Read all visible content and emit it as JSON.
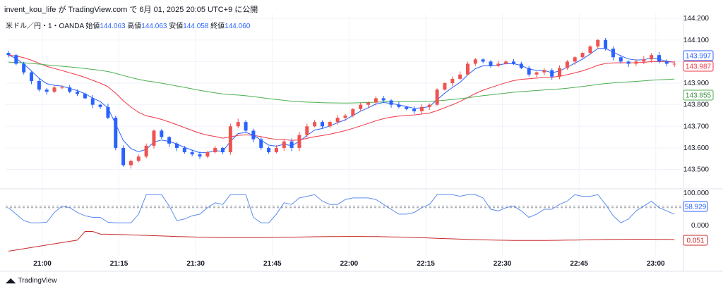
{
  "header": {
    "user": "invent_kou_life",
    "by": "が",
    "site": "TradingView.com",
    "at": "で",
    "date": "6月 01, 2025 20:05 UTC+9",
    "published": "に公開"
  },
  "symbol": {
    "name": "米ドル／円・1・OANDA",
    "open_label": "始値",
    "open": "144.063",
    "high_label": "高値",
    "high": "144.063",
    "low_label": "安値",
    "low": "144.058",
    "close_label": "終値",
    "close": "144.060"
  },
  "footer": {
    "brand": "TradingView"
  },
  "colors": {
    "up": "#ef5350",
    "down": "#2962ff",
    "ma_fast": "#2962ff",
    "ma_mid": "#f23645",
    "ma_slow": "#4caf50",
    "osc": "#5b8def",
    "osc2": "#c62828"
  },
  "chart_data": {
    "type": "candlestick",
    "title": "米ドル／円・1・OANDA",
    "price_ticks": [
      "144.200",
      "144.100",
      "144.000",
      "143.900",
      "143.800",
      "143.700",
      "143.600",
      "143.500"
    ],
    "price_labels": {
      "ma_fast_last": "143.997",
      "last_price": "143.987",
      "ma_slow_last": "143.855"
    },
    "time_labels": [
      "21:00",
      "21:15",
      "21:30",
      "21:45",
      "22:00",
      "22:15",
      "22:30",
      "22:45",
      "23:00"
    ],
    "ylim": [
      143.43,
      144.22
    ],
    "oscillator": {
      "ticks": [
        "100.000",
        "0.000"
      ],
      "value1": "58.929",
      "value2": "0.051",
      "ylim": [
        0,
        100
      ]
    },
    "close_path": [
      144.03,
      143.99,
      143.95,
      143.91,
      143.87,
      143.86,
      143.88,
      143.88,
      143.86,
      143.85,
      143.83,
      143.8,
      143.79,
      143.74,
      143.6,
      143.52,
      143.54,
      143.56,
      143.61,
      143.68,
      143.65,
      143.62,
      143.6,
      143.58,
      143.57,
      143.56,
      143.58,
      143.6,
      143.58,
      143.7,
      143.72,
      143.68,
      143.64,
      143.6,
      143.58,
      143.6,
      143.63,
      143.6,
      143.66,
      143.7,
      143.72,
      143.7,
      143.72,
      143.74,
      143.75,
      143.78,
      143.8,
      143.81,
      143.83,
      143.82,
      143.8,
      143.79,
      143.78,
      143.77,
      143.79,
      143.8,
      143.87,
      143.9,
      143.92,
      143.94,
      143.99,
      144.01,
      144.0,
      143.98,
      143.99,
      144.0,
      143.99,
      143.97,
      143.94,
      143.95,
      143.96,
      143.93,
      143.97,
      144.0,
      144.02,
      144.04,
      144.07,
      144.1,
      144.06,
      144.02,
      144.0,
      143.99,
      144.0,
      144.01,
      144.03,
      144.0,
      143.99,
      143.99
    ]
  }
}
